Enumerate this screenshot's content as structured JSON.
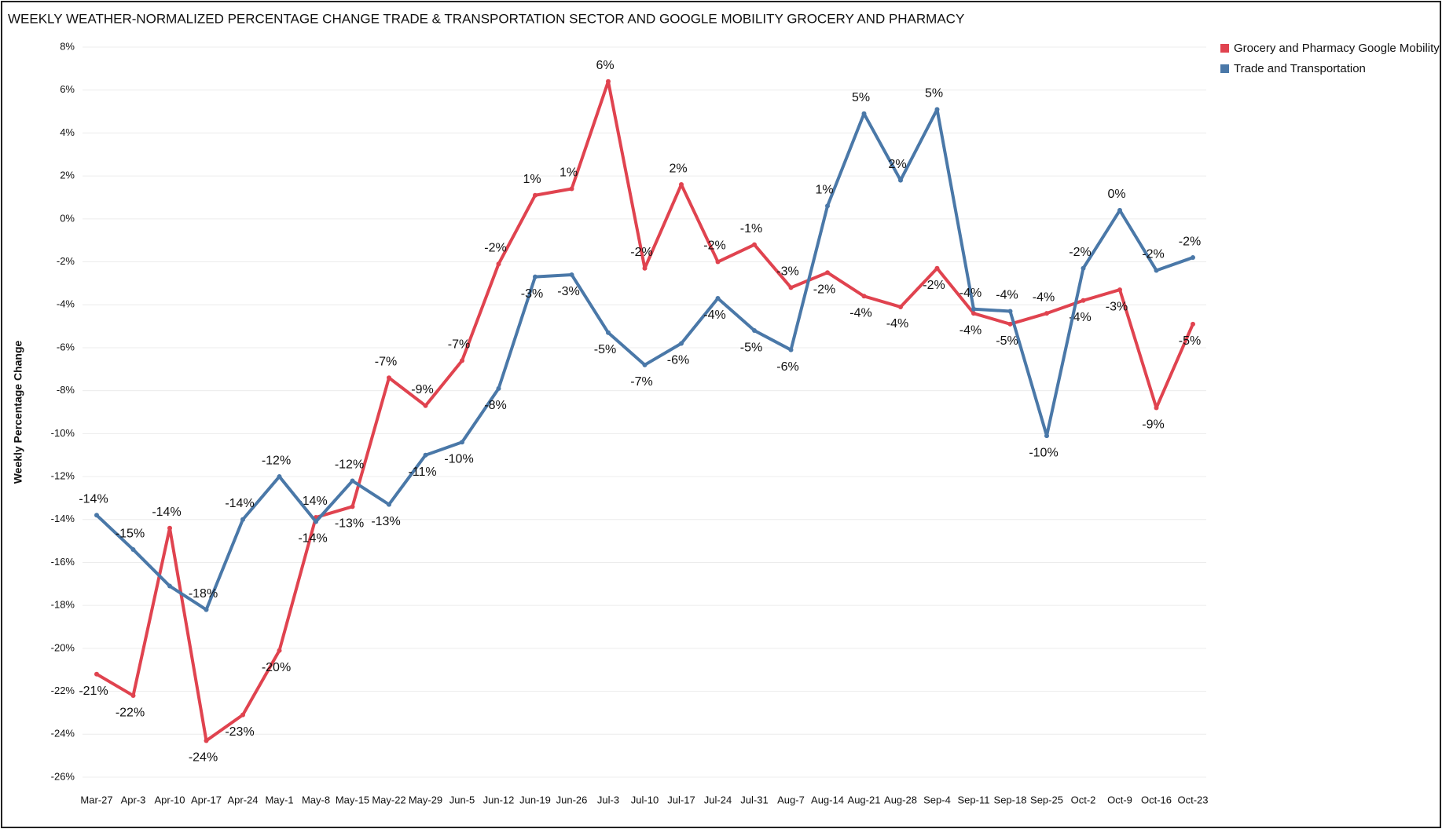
{
  "chart_data": {
    "type": "line",
    "title": "WEEKLY WEATHER-NORMALIZED PERCENTAGE CHANGE TRADE & TRANSPORTATION  SECTOR AND GOOGLE MOBILITY GROCERY AND PHARMACY",
    "y_label": "Weekly Percentage Change",
    "categories": [
      "Mar-27",
      "Apr-3",
      "Apr-10",
      "Apr-17",
      "Apr-24",
      "May-1",
      "May-8",
      "May-15",
      "May-22",
      "May-29",
      "Jun-5",
      "Jun-12",
      "Jun-19",
      "Jun-26",
      "Jul-3",
      "Jul-10",
      "Jul-17",
      "Jul-24",
      "Jul-31",
      "Aug-7",
      "Aug-14",
      "Aug-21",
      "Aug-28",
      "Sep-4",
      "Sep-11",
      "Sep-18",
      "Sep-25",
      "Oct-2",
      "Oct-9",
      "Oct-16",
      "Oct-23"
    ],
    "series": [
      {
        "name": "Grocery and Pharmacy Google Mobility",
        "color": "#e0434f",
        "values": [
          -21.2,
          -22.2,
          -14.4,
          -24.3,
          -23.1,
          -20.1,
          -13.9,
          -13.4,
          -7.4,
          -8.7,
          -6.6,
          -2.1,
          1.1,
          1.4,
          6.4,
          -2.3,
          1.6,
          -2.0,
          -1.2,
          -3.2,
          -2.5,
          -3.6,
          -4.1,
          -2.3,
          -4.4,
          -4.9,
          -4.4,
          -3.8,
          -3.3,
          -8.8,
          -4.9
        ],
        "value_labels": [
          "-21%",
          "-22%",
          "-14%",
          "-24%",
          "-23%",
          "-20%",
          "-14%",
          "-13%",
          "-7%",
          "-9%",
          "-7%",
          "-2%",
          "1%",
          "1%",
          "6%",
          "-2%",
          "2%",
          "-2%",
          "-1%",
          "-3%",
          "-2%",
          "-4%",
          "-4%",
          "-2%",
          "-4%",
          "-5%",
          "-4%",
          "-4%",
          "-3%",
          "-9%",
          "-5%"
        ]
      },
      {
        "name": "Trade and Transportation",
        "color": "#4a78a8",
        "values": [
          -13.8,
          -15.4,
          -17.1,
          -18.2,
          -14.0,
          -12.0,
          -14.1,
          -12.2,
          -13.3,
          -11.0,
          -10.4,
          -7.9,
          -2.7,
          -2.6,
          -5.3,
          -6.8,
          -5.8,
          -3.7,
          -5.2,
          -6.1,
          0.6,
          4.9,
          1.8,
          5.1,
          -4.2,
          -4.3,
          -10.1,
          -2.3,
          0.4,
          -2.4,
          -1.8
        ],
        "value_labels": [
          "-14%",
          "-15%",
          null,
          "-18%",
          "-14%",
          "-12%",
          "-14%",
          "-12%",
          "-13%",
          "-11%",
          "-10%",
          "-8%",
          "-3%",
          "-3%",
          "-5%",
          "-7%",
          "-6%",
          "-4%",
          "-5%",
          "-6%",
          "1%",
          "5%",
          "2%",
          "5%",
          "-4%",
          "-4%",
          "-10%",
          "-2%",
          "0%",
          "-2%",
          "-2%"
        ]
      }
    ],
    "ylim": [
      -26,
      8
    ],
    "yticks": [
      {
        "value": -26,
        "label": "-26%"
      },
      {
        "value": -24,
        "label": "-24%"
      },
      {
        "value": -22,
        "label": "-22%"
      },
      {
        "value": -20,
        "label": "-20%"
      },
      {
        "value": -18,
        "label": "-18%"
      },
      {
        "value": -16,
        "label": "-16%"
      },
      {
        "value": -14,
        "label": "-14%"
      },
      {
        "value": -12,
        "label": "-12%"
      },
      {
        "value": -10,
        "label": "-10%"
      },
      {
        "value": -8,
        "label": "-8%"
      },
      {
        "value": -6,
        "label": "-6%"
      },
      {
        "value": -4,
        "label": "-4%"
      },
      {
        "value": -2,
        "label": "-2%"
      },
      {
        "value": 0,
        "label": "0%"
      },
      {
        "value": 2,
        "label": "2%"
      },
      {
        "value": 4,
        "label": "4%"
      },
      {
        "value": 6,
        "label": "6%"
      },
      {
        "value": 8,
        "label": "8%"
      }
    ],
    "grid": true,
    "legend": "top-right"
  }
}
